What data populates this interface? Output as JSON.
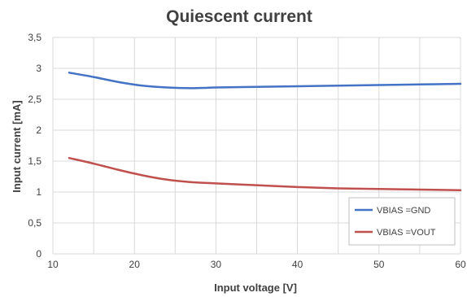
{
  "chart_data": {
    "type": "line",
    "title": "Quiescent current",
    "xlabel": "Input voltage [V]",
    "ylabel": "Input current  [mA]",
    "xlim": [
      10,
      60
    ],
    "ylim": [
      0,
      3.5
    ],
    "xticks": [
      10,
      20,
      30,
      40,
      50,
      60
    ],
    "yticks": [
      0,
      0.5,
      1,
      1.5,
      2,
      2.5,
      3,
      3.5
    ],
    "xtick_labels": [
      "10",
      "20",
      "30",
      "40",
      "50",
      "60"
    ],
    "ytick_labels": [
      "0",
      "0,5",
      "1",
      "1,5",
      "2",
      "2,5",
      "3",
      "3,5"
    ],
    "grid": true,
    "legend_position": "bottom-right",
    "series": [
      {
        "name": "VBIAS =GND",
        "color": "#4472c4",
        "x": [
          12,
          15,
          18,
          21,
          24,
          27,
          30,
          35,
          40,
          45,
          50,
          55,
          60
        ],
        "y": [
          2.93,
          2.86,
          2.78,
          2.72,
          2.69,
          2.68,
          2.69,
          2.7,
          2.71,
          2.72,
          2.73,
          2.74,
          2.75
        ]
      },
      {
        "name": "VBIAS =VOUT",
        "color": "#c0504d",
        "x": [
          12,
          15,
          18,
          21,
          24,
          27,
          30,
          35,
          40,
          45,
          50,
          55,
          60
        ],
        "y": [
          1.55,
          1.46,
          1.36,
          1.27,
          1.2,
          1.16,
          1.14,
          1.11,
          1.08,
          1.06,
          1.05,
          1.04,
          1.03
        ]
      }
    ]
  }
}
